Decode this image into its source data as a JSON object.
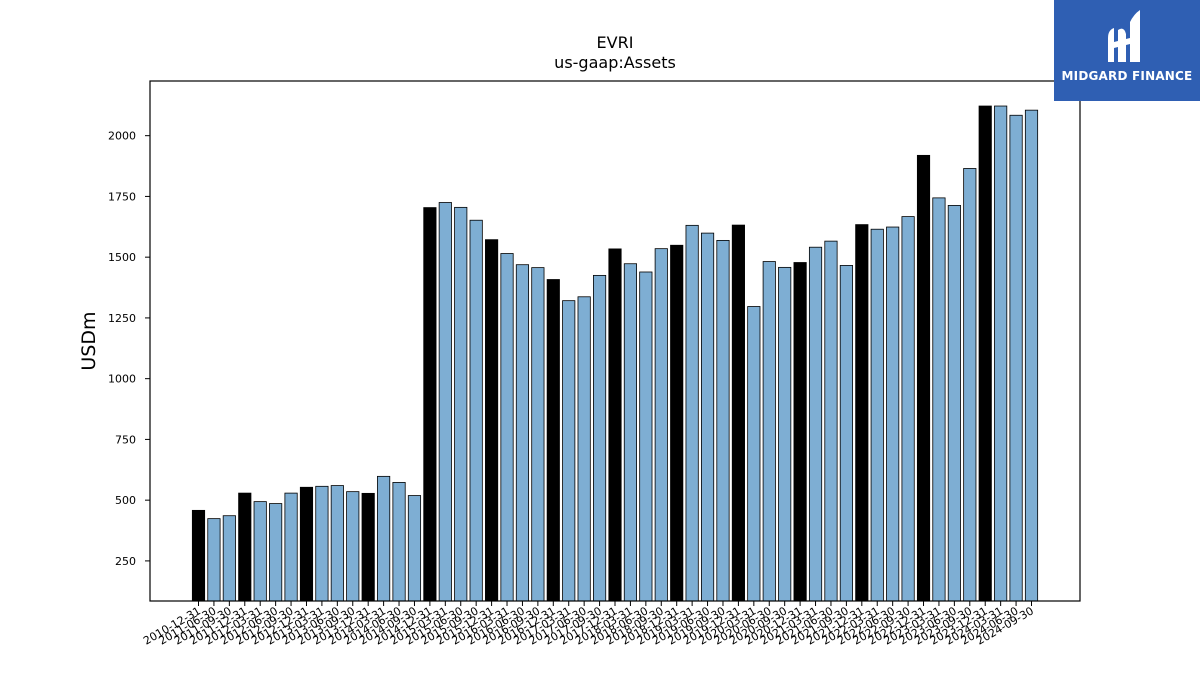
{
  "logo": {
    "text": "MIDGARD FINANCE"
  },
  "colors": {
    "annual": "#000000",
    "quarter": "#7eaed3",
    "edge": "#000000",
    "logo_bg": "#2f5fb3"
  },
  "chart_data": {
    "type": "bar",
    "title": "EVRI",
    "subtitle": "us-gaap:Assets",
    "ylabel": "USDm",
    "xlabel": "",
    "ylim": [
      85,
      2225
    ],
    "yticks": [
      250,
      500,
      750,
      1000,
      1250,
      1500,
      1750,
      2000
    ],
    "grid": false,
    "categories": [
      "2010-12-31",
      "2011-06-30",
      "2011-09-30",
      "2011-12-31",
      "2012-03-31",
      "2012-06-30",
      "2012-09-30",
      "2012-12-31",
      "2013-03-31",
      "2013-06-30",
      "2013-09-30",
      "2013-12-31",
      "2014-03-31",
      "2014-06-30",
      "2014-09-30",
      "2014-12-31",
      "2015-03-31",
      "2015-06-30",
      "2015-09-30",
      "2015-12-31",
      "2016-03-31",
      "2016-06-30",
      "2016-09-30",
      "2016-12-31",
      "2017-03-31",
      "2017-06-30",
      "2017-09-30",
      "2017-12-31",
      "2018-03-31",
      "2018-06-30",
      "2018-09-30",
      "2018-12-31",
      "2019-03-31",
      "2019-06-30",
      "2019-09-30",
      "2019-12-31",
      "2020-03-31",
      "2020-06-30",
      "2020-09-30",
      "2020-12-31",
      "2021-03-31",
      "2021-06-30",
      "2021-09-30",
      "2021-12-31",
      "2022-03-31",
      "2022-06-30",
      "2022-09-30",
      "2022-12-31",
      "2023-03-31",
      "2023-06-30",
      "2023-09-30",
      "2023-12-31",
      "2024-03-31",
      "2024-06-30",
      "2024-09-30"
    ],
    "values": [
      458,
      424,
      436,
      529,
      494,
      486,
      529,
      553,
      557,
      560,
      535,
      528,
      598,
      573,
      519,
      1704,
      1725,
      1705,
      1652,
      1572,
      1515,
      1469,
      1457,
      1408,
      1321,
      1337,
      1425,
      1534,
      1473,
      1439,
      1535,
      1549,
      1631,
      1599,
      1569,
      1632,
      1297,
      1482,
      1458,
      1478,
      1541,
      1566,
      1466,
      1634,
      1615,
      1624,
      1667,
      1919,
      1744,
      1713,
      1865,
      2122,
      2122,
      2084,
      2105
    ],
    "annual": [
      true,
      false,
      false,
      true,
      false,
      false,
      false,
      true,
      false,
      false,
      false,
      true,
      false,
      false,
      false,
      true,
      false,
      false,
      false,
      true,
      false,
      false,
      false,
      true,
      false,
      false,
      false,
      true,
      false,
      false,
      false,
      true,
      false,
      false,
      false,
      true,
      false,
      false,
      false,
      true,
      false,
      false,
      false,
      true,
      false,
      false,
      false,
      true,
      false,
      false,
      false,
      true,
      false,
      false,
      false
    ]
  }
}
